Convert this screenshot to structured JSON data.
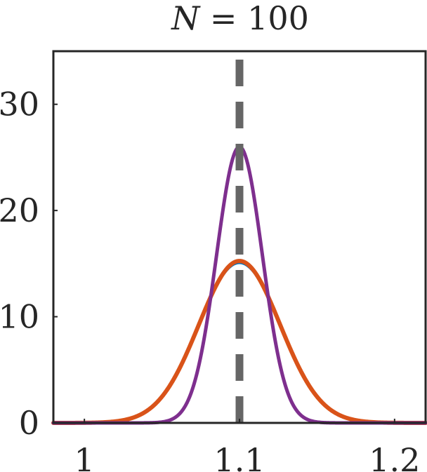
{
  "chart_data": {
    "type": "line",
    "title": {
      "variable": "N",
      "equals": " = ",
      "value": "100"
    },
    "xlabel": "",
    "ylabel": "",
    "xlim": [
      0.98,
      1.22
    ],
    "ylim": [
      0,
      35
    ],
    "x_ticks": [
      {
        "value": 1.0,
        "label": "1"
      },
      {
        "value": 1.1,
        "label": "1.1"
      },
      {
        "value": 1.2,
        "label": "1.2"
      }
    ],
    "y_ticks": [
      {
        "value": 0,
        "label": "0"
      },
      {
        "value": 10,
        "label": "10"
      },
      {
        "value": 20,
        "label": "20"
      },
      {
        "value": 30,
        "label": "30"
      }
    ],
    "reference_line": {
      "x": 1.1,
      "style": "dashed",
      "color": "#666666"
    },
    "series": [
      {
        "color": "#0072BD",
        "mean": 1.1,
        "sd": 0.0265,
        "peak": 15.05,
        "width": 3
      },
      {
        "color": "#D95319",
        "mean": 1.1,
        "sd": 0.0262,
        "peak": 15.25,
        "width": 6
      },
      {
        "color": "#7E2F8E",
        "mean": 1.1,
        "sd": 0.0148,
        "peak": 26.0,
        "width": 5
      }
    ],
    "grid": false,
    "legend": "none"
  }
}
